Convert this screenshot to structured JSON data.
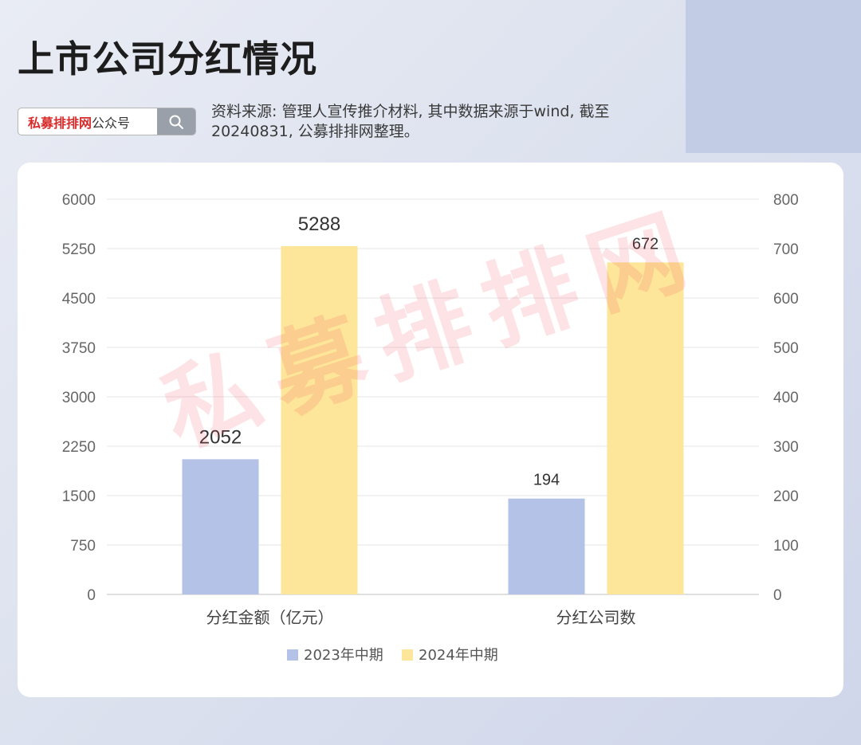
{
  "page": {
    "title": "上市公司分红情况",
    "search": {
      "brand": "私募排排网",
      "suffix": "公众号"
    },
    "source_note": "资料来源: 管理人宣传推介材料, 其中数据来源于wind, 截至20240831, 公募排排网整理。",
    "watermark": "私募排排网"
  },
  "chart_data": {
    "type": "bar",
    "categories": [
      "分红金额（亿元）",
      "分红公司数"
    ],
    "series": [
      {
        "name": "2023年中期",
        "values": [
          2052,
          194
        ],
        "color": "#b3c2e6"
      },
      {
        "name": "2024年中期",
        "values": [
          5288,
          672
        ],
        "color": "#fde599"
      }
    ],
    "y_left": {
      "min": 0,
      "max": 6000,
      "ticks": [
        "0",
        "750",
        "1500",
        "2250",
        "3000",
        "3750",
        "4500",
        "5250",
        "6000"
      ]
    },
    "y_right": {
      "min": 0,
      "max": 800,
      "ticks": [
        "0",
        "100",
        "200",
        "300",
        "400",
        "500",
        "600",
        "700",
        "800"
      ]
    },
    "category_axis": [
      "left",
      "right"
    ],
    "grid": true,
    "legend_position": "bottom"
  }
}
